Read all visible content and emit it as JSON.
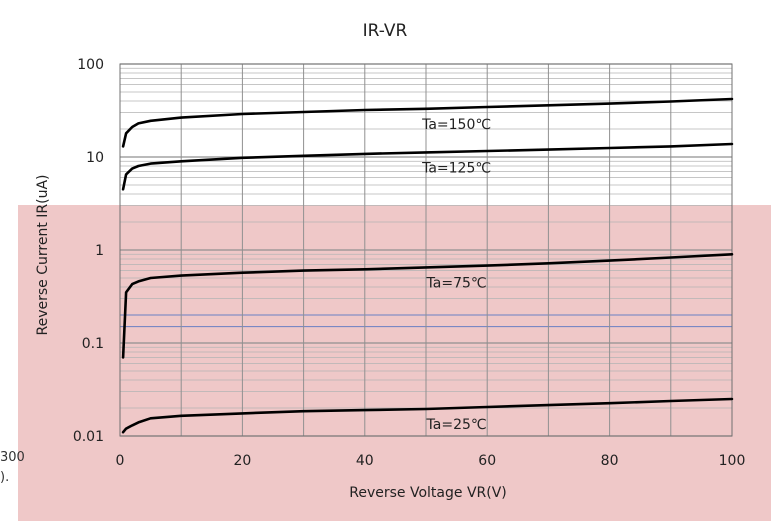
{
  "chart_data": {
    "type": "line",
    "title": "IR-VR",
    "xlabel": "Reverse Voltage   VR(V)",
    "ylabel": "Reverse Current   IR(uA)",
    "x_scale": "linear",
    "y_scale": "log",
    "xlim": [
      0,
      100
    ],
    "ylim": [
      0.01,
      100
    ],
    "x_ticks": [
      "0",
      "20",
      "40",
      "60",
      "80",
      "100"
    ],
    "y_ticks": [
      "0.01",
      "0.1",
      "1",
      "10",
      "100"
    ],
    "grid": true,
    "series": [
      {
        "name": "Ta=150℃",
        "x": [
          0.5,
          1,
          2,
          3,
          5,
          10,
          20,
          30,
          40,
          50,
          60,
          70,
          80,
          90,
          100
        ],
        "y": [
          13,
          18,
          21,
          23,
          24.5,
          26.5,
          29,
          30.5,
          32,
          33,
          34.5,
          36,
          37.5,
          39.5,
          42
        ]
      },
      {
        "name": "Ta=125℃",
        "x": [
          0.5,
          1,
          2,
          3,
          5,
          10,
          20,
          30,
          40,
          50,
          60,
          70,
          80,
          90,
          100
        ],
        "y": [
          4.5,
          6.5,
          7.5,
          8,
          8.5,
          9,
          9.8,
          10.3,
          10.8,
          11.2,
          11.6,
          12,
          12.5,
          13,
          13.8
        ]
      },
      {
        "name": "Ta=75℃",
        "x": [
          0.5,
          1,
          2,
          3,
          5,
          10,
          20,
          30,
          40,
          50,
          60,
          70,
          80,
          90,
          100
        ],
        "y": [
          0.07,
          0.35,
          0.43,
          0.46,
          0.5,
          0.53,
          0.57,
          0.6,
          0.62,
          0.65,
          0.68,
          0.72,
          0.77,
          0.83,
          0.9
        ]
      },
      {
        "name": "Ta=25℃",
        "x": [
          0.5,
          1,
          2,
          3,
          5,
          10,
          20,
          30,
          40,
          50,
          60,
          70,
          80,
          90,
          100
        ],
        "y": [
          0.011,
          0.012,
          0.013,
          0.014,
          0.0155,
          0.0165,
          0.0175,
          0.0185,
          0.019,
          0.0195,
          0.0205,
          0.0215,
          0.0225,
          0.0238,
          0.025
        ]
      }
    ],
    "colors": {
      "curve": "#000000",
      "grid": "#909090",
      "shade": "#efc8c8",
      "blue_gridline": "#6a7fc4"
    }
  },
  "edge_fragments": {
    "left_x_tick": "300",
    "left_x_label": ")."
  }
}
